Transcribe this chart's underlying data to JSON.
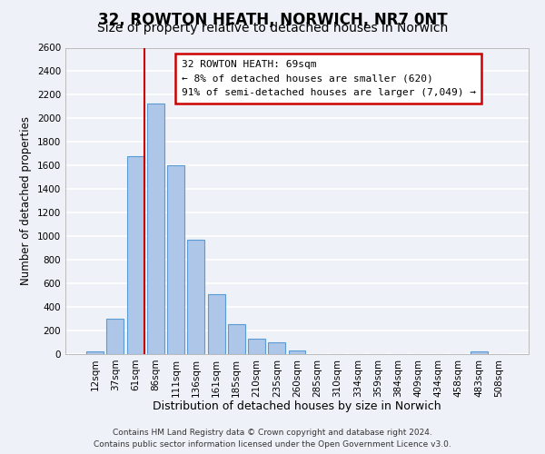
{
  "title": "32, ROWTON HEATH, NORWICH, NR7 0NT",
  "subtitle": "Size of property relative to detached houses in Norwich",
  "xlabel": "Distribution of detached houses by size in Norwich",
  "ylabel": "Number of detached properties",
  "bar_labels": [
    "12sqm",
    "37sqm",
    "61sqm",
    "86sqm",
    "111sqm",
    "136sqm",
    "161sqm",
    "185sqm",
    "210sqm",
    "235sqm",
    "260sqm",
    "285sqm",
    "310sqm",
    "334sqm",
    "359sqm",
    "384sqm",
    "409sqm",
    "434sqm",
    "458sqm",
    "483sqm",
    "508sqm"
  ],
  "bar_values": [
    20,
    300,
    1680,
    2130,
    1600,
    970,
    510,
    255,
    130,
    100,
    30,
    0,
    0,
    0,
    0,
    0,
    0,
    0,
    0,
    20,
    0
  ],
  "bar_color": "#aec6e8",
  "bar_edge_color": "#5b9bd5",
  "vline_color": "#cc0000",
  "vline_pos": 2.425,
  "annotation_title": "32 ROWTON HEATH: 69sqm",
  "annotation_line2": "← 8% of detached houses are smaller (620)",
  "annotation_line3": "91% of semi-detached houses are larger (7,049) →",
  "annotation_box_edge_color": "#cc0000",
  "ylim": [
    0,
    2600
  ],
  "yticks": [
    0,
    200,
    400,
    600,
    800,
    1000,
    1200,
    1400,
    1600,
    1800,
    2000,
    2200,
    2400,
    2600
  ],
  "footer_line1": "Contains HM Land Registry data © Crown copyright and database right 2024.",
  "footer_line2": "Contains public sector information licensed under the Open Government Licence v3.0.",
  "bg_color": "#eef2f8",
  "grid_color": "#ffffff",
  "title_fontsize": 12,
  "subtitle_fontsize": 10,
  "tick_fontsize": 7.5,
  "ylabel_fontsize": 8.5,
  "xlabel_fontsize": 9
}
